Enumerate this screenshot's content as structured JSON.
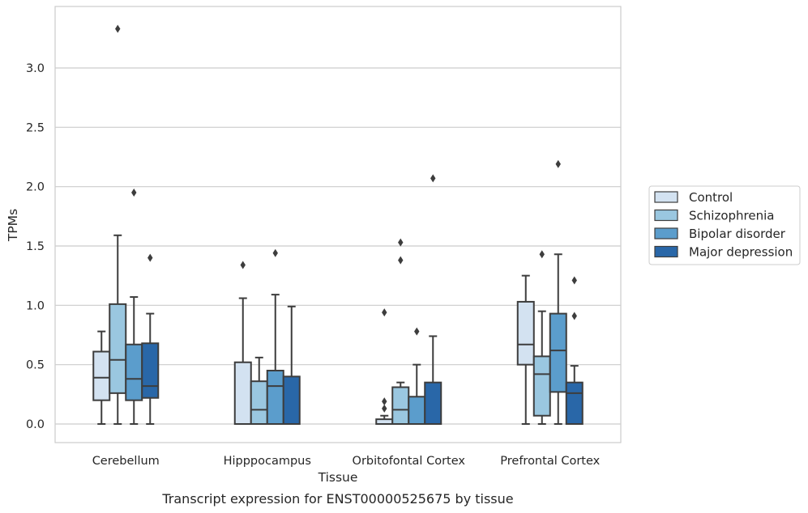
{
  "chart_data": {
    "type": "box",
    "title": "",
    "xlabel": "Tissue",
    "ylabel": "TPMs",
    "caption": "Transcript expression for ENST00000525675 by tissue",
    "ylim": [
      -0.16,
      3.5
    ],
    "yticks": [
      0.0,
      0.5,
      1.0,
      1.5,
      2.0,
      2.5,
      3.0
    ],
    "ytick_labels": [
      "0.0",
      "0.5",
      "1.0",
      "1.5",
      "2.0",
      "2.5",
      "3.0"
    ],
    "grid": "horizontal",
    "legend_position": "right",
    "categories": [
      "Cerebellum",
      "Hipppocampus",
      "Orbitofontal Cortex",
      "Prefrontal Cortex"
    ],
    "series": [
      {
        "name": "Control",
        "color": "#d3e2f1",
        "boxes": [
          {
            "whislo": 0.0,
            "q1": 0.2,
            "med": 0.39,
            "q3": 0.61,
            "whishi": 0.78,
            "fliers": []
          },
          {
            "whislo": 0.0,
            "q1": 0.0,
            "med": 0.0,
            "q3": 0.52,
            "whishi": 1.06,
            "fliers": [
              1.34
            ]
          },
          {
            "whislo": 0.0,
            "q1": 0.0,
            "med": 0.0,
            "q3": 0.04,
            "whishi": 0.07,
            "fliers": [
              0.13,
              0.19,
              0.94
            ]
          },
          {
            "whislo": 0.0,
            "q1": 0.5,
            "med": 0.67,
            "q3": 1.03,
            "whishi": 1.25,
            "fliers": []
          }
        ]
      },
      {
        "name": "Schizophrenia",
        "color": "#9ac7e0",
        "boxes": [
          {
            "whislo": 0.0,
            "q1": 0.26,
            "med": 0.54,
            "q3": 1.01,
            "whishi": 1.59,
            "fliers": [
              3.33
            ]
          },
          {
            "whislo": 0.0,
            "q1": 0.0,
            "med": 0.12,
            "q3": 0.36,
            "whishi": 0.56,
            "fliers": []
          },
          {
            "whislo": 0.0,
            "q1": 0.0,
            "med": 0.12,
            "q3": 0.31,
            "whishi": 0.35,
            "fliers": [
              1.38,
              1.53
            ]
          },
          {
            "whislo": 0.0,
            "q1": 0.07,
            "med": 0.42,
            "q3": 0.57,
            "whishi": 0.95,
            "fliers": [
              1.43
            ]
          }
        ]
      },
      {
        "name": "Bipolar disorder",
        "color": "#5b9dcc",
        "boxes": [
          {
            "whislo": 0.0,
            "q1": 0.2,
            "med": 0.38,
            "q3": 0.67,
            "whishi": 1.07,
            "fliers": [
              1.95
            ]
          },
          {
            "whislo": 0.0,
            "q1": 0.0,
            "med": 0.32,
            "q3": 0.45,
            "whishi": 1.09,
            "fliers": [
              1.44
            ]
          },
          {
            "whislo": 0.0,
            "q1": 0.0,
            "med": 0.0,
            "q3": 0.23,
            "whishi": 0.5,
            "fliers": [
              0.78
            ]
          },
          {
            "whislo": 0.0,
            "q1": 0.27,
            "med": 0.62,
            "q3": 0.93,
            "whishi": 1.43,
            "fliers": [
              2.19
            ]
          }
        ]
      },
      {
        "name": "Major depression",
        "color": "#2967a8",
        "boxes": [
          {
            "whislo": 0.0,
            "q1": 0.22,
            "med": 0.32,
            "q3": 0.68,
            "whishi": 0.93,
            "fliers": [
              1.4
            ]
          },
          {
            "whislo": 0.0,
            "q1": 0.0,
            "med": 0.0,
            "q3": 0.4,
            "whishi": 0.99,
            "fliers": []
          },
          {
            "whislo": 0.0,
            "q1": 0.0,
            "med": 0.0,
            "q3": 0.35,
            "whishi": 0.74,
            "fliers": [
              2.07
            ]
          },
          {
            "whislo": 0.0,
            "q1": 0.0,
            "med": 0.26,
            "q3": 0.35,
            "whishi": 0.49,
            "fliers": [
              0.91,
              1.21
            ]
          }
        ]
      }
    ]
  }
}
